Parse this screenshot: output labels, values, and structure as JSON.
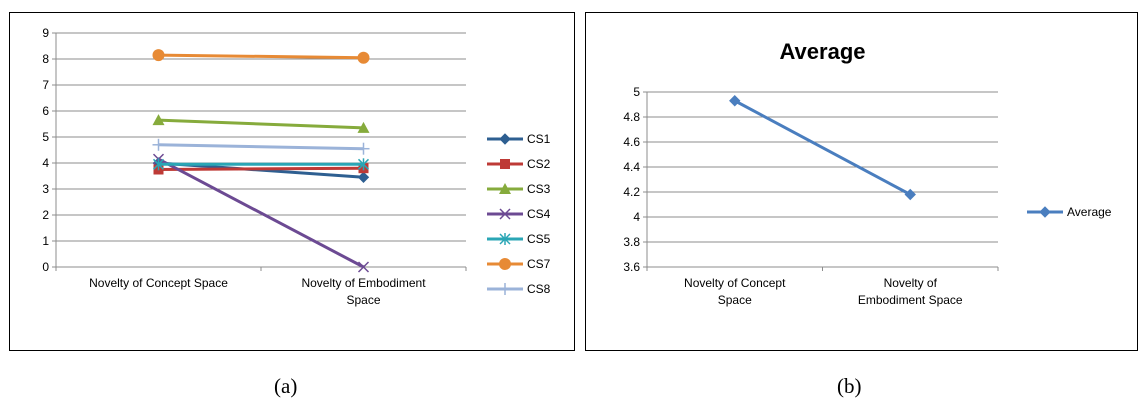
{
  "chart_data": [
    {
      "type": "line",
      "title": "",
      "xlabel": "",
      "ylabel": "",
      "categories": [
        [
          "Novelty of Concept Space"
        ],
        [
          "Novelty of Embodiment",
          "Space"
        ]
      ],
      "ylim": [
        0,
        9
      ],
      "yticks": [
        "0",
        "1",
        "2",
        "3",
        "4",
        "5",
        "6",
        "7",
        "8",
        "9"
      ],
      "grid": true,
      "legend_position": "right",
      "series": [
        {
          "name": "CS1",
          "values": [
            4.0,
            3.45
          ],
          "color": "#2e5f91",
          "marker": "diamond"
        },
        {
          "name": "CS2",
          "values": [
            3.75,
            3.8
          ],
          "color": "#be3a36",
          "marker": "square"
        },
        {
          "name": "CS3",
          "values": [
            5.65,
            5.35
          ],
          "color": "#86ab3c",
          "marker": "triangle"
        },
        {
          "name": "CS4",
          "values": [
            4.15,
            0.0
          ],
          "color": "#6c4a93",
          "marker": "x"
        },
        {
          "name": "CS5",
          "values": [
            3.95,
            3.95
          ],
          "color": "#2aa6b5",
          "marker": "star"
        },
        {
          "name": "CS7",
          "values": [
            8.15,
            8.05
          ],
          "color": "#e78a35",
          "marker": "circle"
        },
        {
          "name": "CS8",
          "values": [
            4.7,
            4.55
          ],
          "color": "#9bb3d9",
          "marker": "plus"
        }
      ]
    },
    {
      "type": "line",
      "title": "Average",
      "xlabel": "",
      "ylabel": "",
      "categories": [
        [
          "Novelty of Concept",
          "Space"
        ],
        [
          "Novelty of",
          "Embodiment Space"
        ]
      ],
      "ylim": [
        3.6,
        5
      ],
      "yticks": [
        "3.6",
        "3.8",
        "4",
        "4.2",
        "4.4",
        "4.6",
        "4.8",
        "5"
      ],
      "grid": true,
      "legend_position": "right",
      "series": [
        {
          "name": "Average",
          "values": [
            4.93,
            4.18
          ],
          "color": "#4a7ebf",
          "marker": "diamond"
        }
      ]
    }
  ],
  "captions": {
    "a": "(a)",
    "b": "(b)"
  }
}
